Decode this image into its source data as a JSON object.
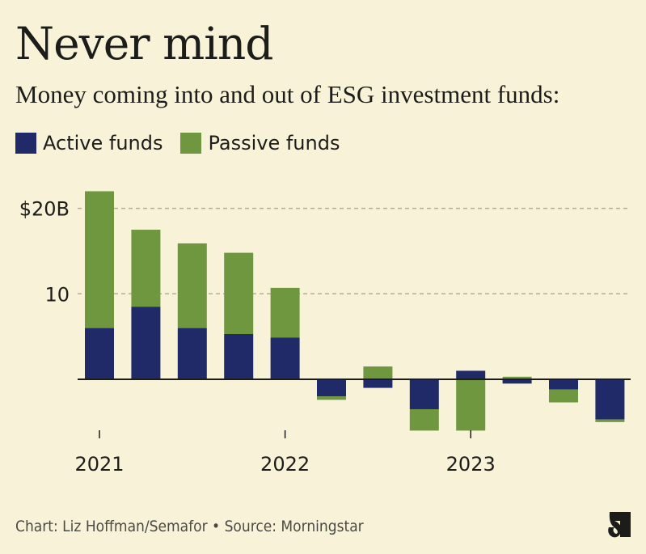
{
  "header": {
    "title": "Never mind",
    "subtitle": "Money coming into and out of ESG investment funds:"
  },
  "legend": [
    {
      "label": "Active funds",
      "color": "#212a68"
    },
    {
      "label": "Passive funds",
      "color": "#6f973f"
    }
  ],
  "footer": {
    "credit": "Chart: Liz Hoffman/Semafor • Source: Morningstar",
    "logo": "semafor-logo-icon"
  },
  "colors": {
    "background": "#f8f3d8",
    "active": "#212a68",
    "passive": "#6f973f",
    "grid": "#b3ad9a",
    "axis": "#1c1c1a"
  },
  "chart_data": {
    "type": "bar",
    "stacked": true,
    "title": "Never mind",
    "subtitle": "Money coming into and out of ESG investment funds:",
    "xlabel": "",
    "ylabel": "",
    "categories": [
      "2021 Q1",
      "2021 Q2",
      "2021 Q3",
      "2021 Q4",
      "2022 Q1",
      "2022 Q2",
      "2022 Q3",
      "2022 Q4",
      "2023 Q1",
      "2023 Q2",
      "2023 Q3",
      "2023 Q4"
    ],
    "series": [
      {
        "name": "Active funds",
        "values": [
          6.0,
          8.5,
          6.0,
          5.3,
          4.9,
          -2.0,
          -1.0,
          -3.5,
          1.0,
          -0.5,
          -1.2,
          -4.7
        ]
      },
      {
        "name": "Passive funds",
        "values": [
          16.0,
          9.0,
          9.9,
          9.5,
          5.8,
          -0.4,
          1.5,
          -2.5,
          -6.0,
          0.3,
          -1.5,
          -0.3
        ]
      }
    ],
    "x_tick_labels": [
      {
        "label": "2021",
        "category_index": 0
      },
      {
        "label": "2022",
        "category_index": 4
      },
      {
        "label": "2023",
        "category_index": 8
      }
    ],
    "y_ticks": [
      {
        "value": 20,
        "label": "$20B"
      },
      {
        "value": 10,
        "label": "10"
      }
    ],
    "ylim": [
      -7,
      23
    ],
    "units": "billions USD",
    "grid": true,
    "legend_position": "top-left"
  }
}
